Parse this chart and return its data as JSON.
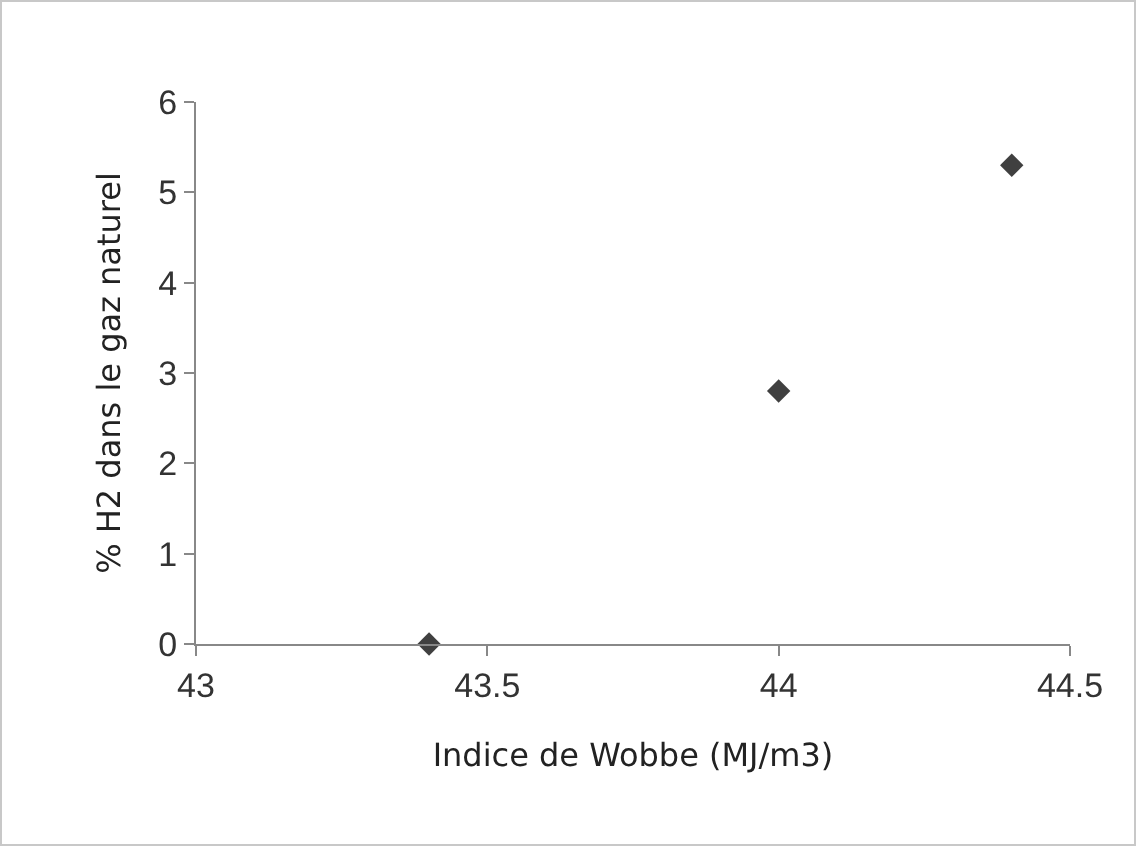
{
  "chart_data": {
    "type": "scatter",
    "xlabel": "Indice de Wobbe (MJ/m3)",
    "ylabel": "% H2 dans le gaz naturel",
    "x": [
      43.4,
      44,
      44.4
    ],
    "values": [
      0,
      2.8,
      5.3
    ],
    "color": "#404040",
    "marker": "diamond",
    "xlim": [
      43,
      44.5
    ],
    "xticks": [
      43,
      43.5,
      44,
      44.5
    ],
    "ylim": [
      0,
      6
    ],
    "yticks": [
      0,
      1,
      2,
      3,
      4,
      5,
      6
    ],
    "grid": false
  }
}
